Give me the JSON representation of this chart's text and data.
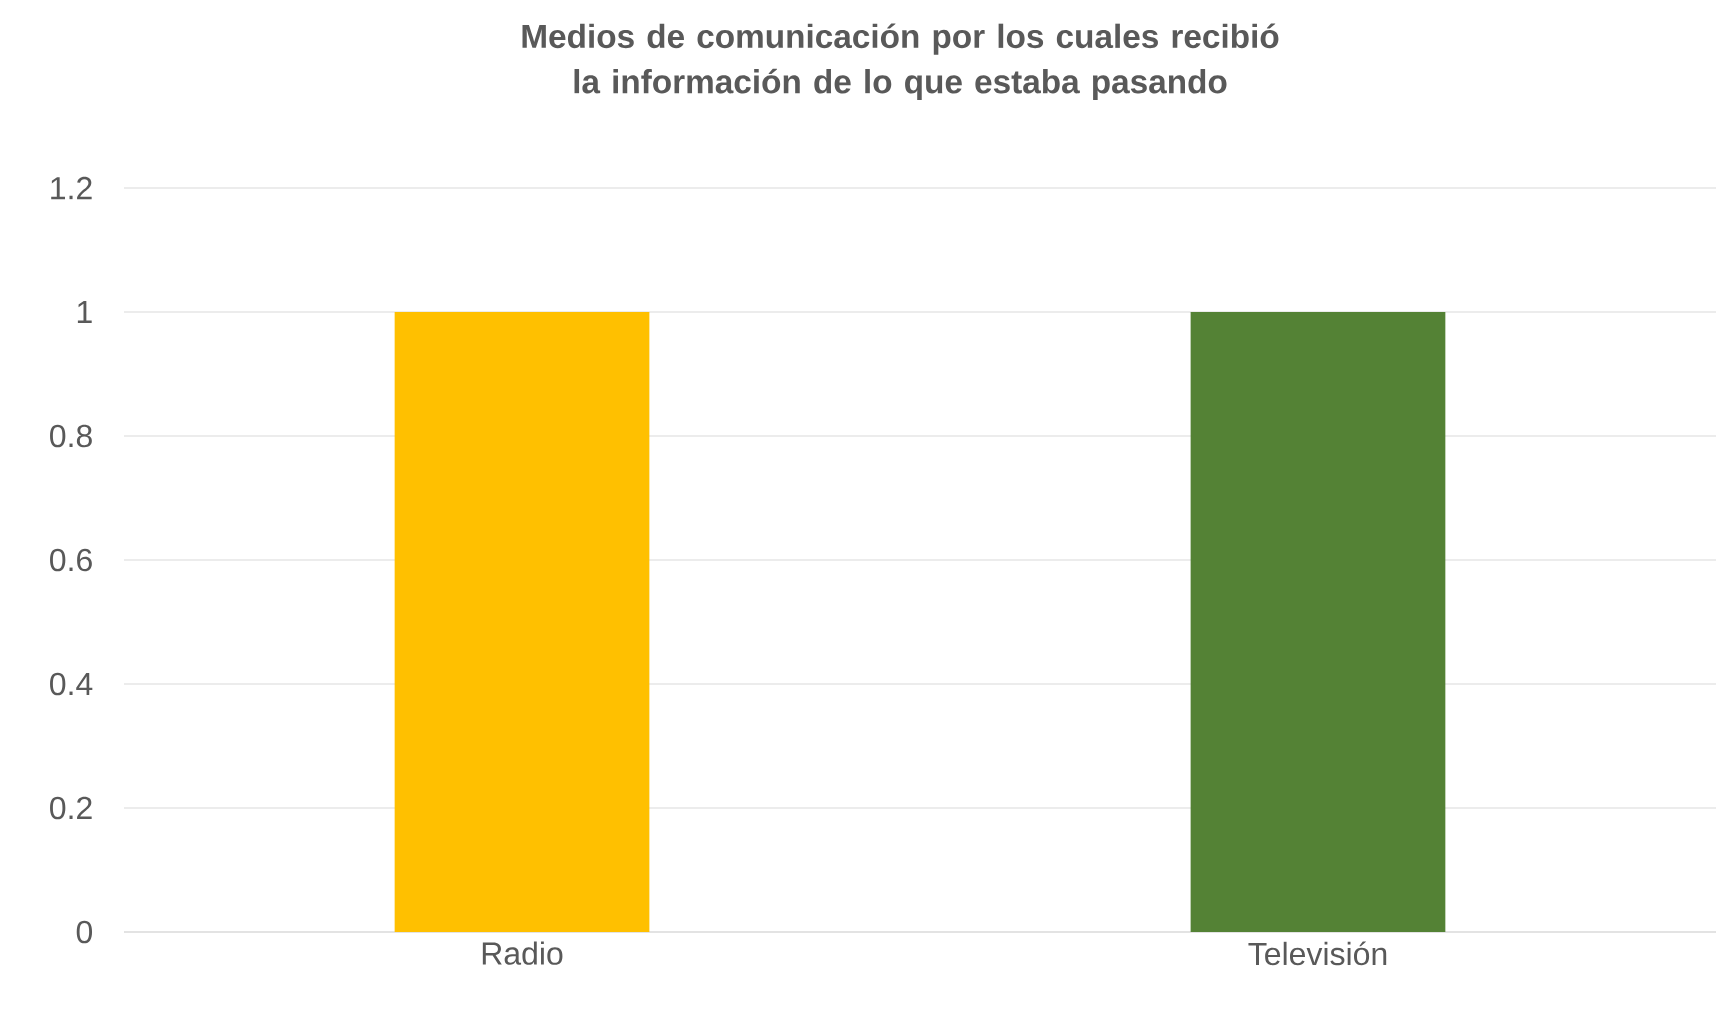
{
  "chart_data": {
    "type": "bar",
    "title": "Medios de comunicación por los cuales recibió la información de lo que estaba pasando",
    "categories": [
      "Radio",
      "Televisión"
    ],
    "values": [
      1,
      1
    ],
    "colors": [
      "#ffc000",
      "#548235"
    ],
    "ylim": [
      0,
      1.2
    ],
    "yticks": [
      0,
      0.2,
      0.4,
      0.6,
      0.8,
      1,
      1.2
    ],
    "grid": "y"
  }
}
